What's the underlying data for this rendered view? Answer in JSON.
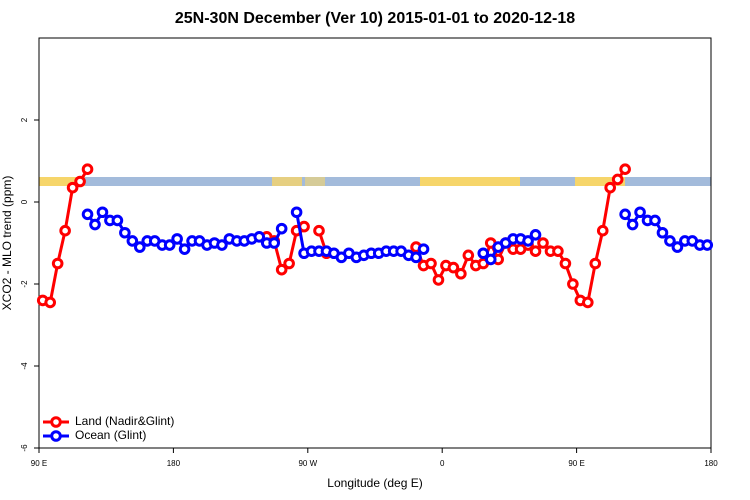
{
  "chart_data": {
    "type": "line",
    "title": "25N-30N December (Ver 10)   2015-01-01 to 2020-12-18",
    "xlabel": "Longitude (deg E)",
    "ylabel": "XCO2 - MLO trend (ppm)",
    "xlim": [
      90,
      540
    ],
    "ylim": [
      -6,
      4
    ],
    "xticks": [
      {
        "value": 90,
        "label": "90 E"
      },
      180,
      {
        "value": 270,
        "label": "90 W"
      },
      {
        "value": 360,
        "label": "0"
      },
      {
        "value": 450,
        "label": "90 E"
      },
      {
        "value": 540,
        "label": "180"
      }
    ],
    "yticks": [
      -6,
      -4,
      -2,
      0,
      2
    ],
    "legend": "bottom-left",
    "series": [
      {
        "name": "Land (Nadir&Glint)",
        "color": "#ff0000",
        "x": [
          92.5,
          97.5,
          102.5,
          107.5,
          112.5,
          117.5,
          122.5,
          null,
          242.5,
          247.5,
          252.5,
          257.5,
          262.5,
          267.5,
          null,
          277.5,
          282.5,
          null,
          342.5,
          347.5,
          352.5,
          357.5,
          362.5,
          367.5,
          372.5,
          377.5,
          382.5,
          387.5,
          392.5,
          397.5,
          402.5,
          407.5,
          412.5,
          417.5,
          422.5,
          427.5,
          432.5,
          437.5,
          442.5,
          447.5,
          452.5,
          457.5,
          462.5,
          467.5,
          472.5,
          477.5,
          482.5
        ],
        "values": [
          -2.4,
          -2.45,
          -1.5,
          -0.7,
          0.35,
          0.5,
          0.8,
          null,
          -0.85,
          -0.95,
          -1.65,
          -1.5,
          -0.7,
          -0.6,
          null,
          -0.7,
          -1.25,
          null,
          -1.1,
          -1.55,
          -1.5,
          -1.9,
          -1.55,
          -1.6,
          -1.75,
          -1.3,
          -1.55,
          -1.5,
          -1.0,
          -1.4,
          -1.0,
          -1.15,
          -1.15,
          -1.05,
          -1.2,
          -1.0,
          -1.2,
          -1.2,
          -1.5,
          -2.0,
          -2.4,
          -2.45,
          -1.5,
          -0.7,
          0.35,
          0.55,
          0.8
        ]
      },
      {
        "name": "Ocean (Glint)",
        "color": "#0000ff",
        "x": [
          122.5,
          127.5,
          132.5,
          137.5,
          142.5,
          147.5,
          152.5,
          157.5,
          162.5,
          167.5,
          172.5,
          177.5,
          182.5,
          187.5,
          192.5,
          197.5,
          202.5,
          207.5,
          212.5,
          217.5,
          222.5,
          227.5,
          232.5,
          237.5,
          242.5,
          247.5,
          252.5,
          null,
          262.5,
          267.5,
          272.5,
          277.5,
          282.5,
          287.5,
          292.5,
          297.5,
          302.5,
          307.5,
          312.5,
          317.5,
          322.5,
          327.5,
          332.5,
          337.5,
          342.5,
          347.5,
          null,
          387.5,
          392.5,
          397.5,
          402.5,
          407.5,
          412.5,
          417.5,
          422.5,
          null,
          482.5,
          487.5,
          492.5,
          497.5,
          502.5,
          507.5,
          512.5,
          517.5,
          522.5,
          527.5,
          532.5,
          537.5
        ],
        "values": [
          -0.3,
          -0.55,
          -0.25,
          -0.45,
          -0.45,
          -0.75,
          -0.95,
          -1.1,
          -0.95,
          -0.95,
          -1.05,
          -1.05,
          -0.9,
          -1.15,
          -0.95,
          -0.95,
          -1.05,
          -1.0,
          -1.05,
          -0.9,
          -0.95,
          -0.95,
          -0.9,
          -0.85,
          -1.0,
          -1.0,
          -0.65,
          null,
          -0.25,
          -1.25,
          -1.2,
          -1.2,
          -1.2,
          -1.25,
          -1.35,
          -1.25,
          -1.35,
          -1.3,
          -1.25,
          -1.25,
          -1.2,
          -1.2,
          -1.2,
          -1.3,
          -1.35,
          -1.15,
          null,
          -1.25,
          -1.4,
          -1.1,
          -1.0,
          -0.9,
          -0.9,
          -0.95,
          -0.8,
          null,
          -0.3,
          -0.55,
          -0.25,
          -0.45,
          -0.45,
          -0.75,
          -0.95,
          -1.1,
          -0.95,
          -0.95,
          -1.05,
          -1.05
        ]
      }
    ]
  }
}
